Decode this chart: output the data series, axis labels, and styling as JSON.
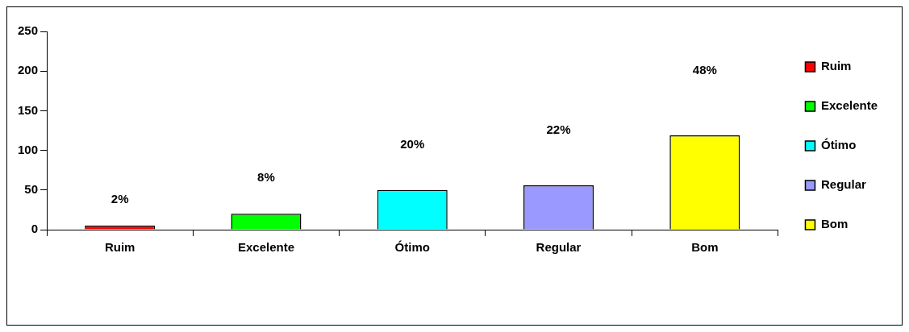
{
  "chart_data": {
    "type": "bar",
    "categories": [
      "Ruim",
      "Excelente",
      "Ótimo",
      "Regular",
      "Bom"
    ],
    "series": [
      {
        "name": "Ruim",
        "color": "#ff0000",
        "values": [
          5,
          null,
          null,
          null,
          null
        ]
      },
      {
        "name": "Excelente",
        "color": "#00ff00",
        "values": [
          null,
          20,
          null,
          null,
          null
        ]
      },
      {
        "name": "Ótimo",
        "color": "#00ffff",
        "values": [
          null,
          null,
          50,
          null,
          null
        ]
      },
      {
        "name": "Regular",
        "color": "#9999ff",
        "values": [
          null,
          null,
          null,
          56,
          null
        ]
      },
      {
        "name": "Bom",
        "color": "#ffff00",
        "values": [
          null,
          null,
          null,
          null,
          119
        ]
      }
    ],
    "annotations": [
      "2%",
      "8%",
      "20%",
      "22%",
      "48%"
    ],
    "ylim": [
      0,
      250
    ],
    "yticks": [
      0,
      50,
      100,
      150,
      200,
      250
    ],
    "grid": false,
    "legend": "right"
  }
}
